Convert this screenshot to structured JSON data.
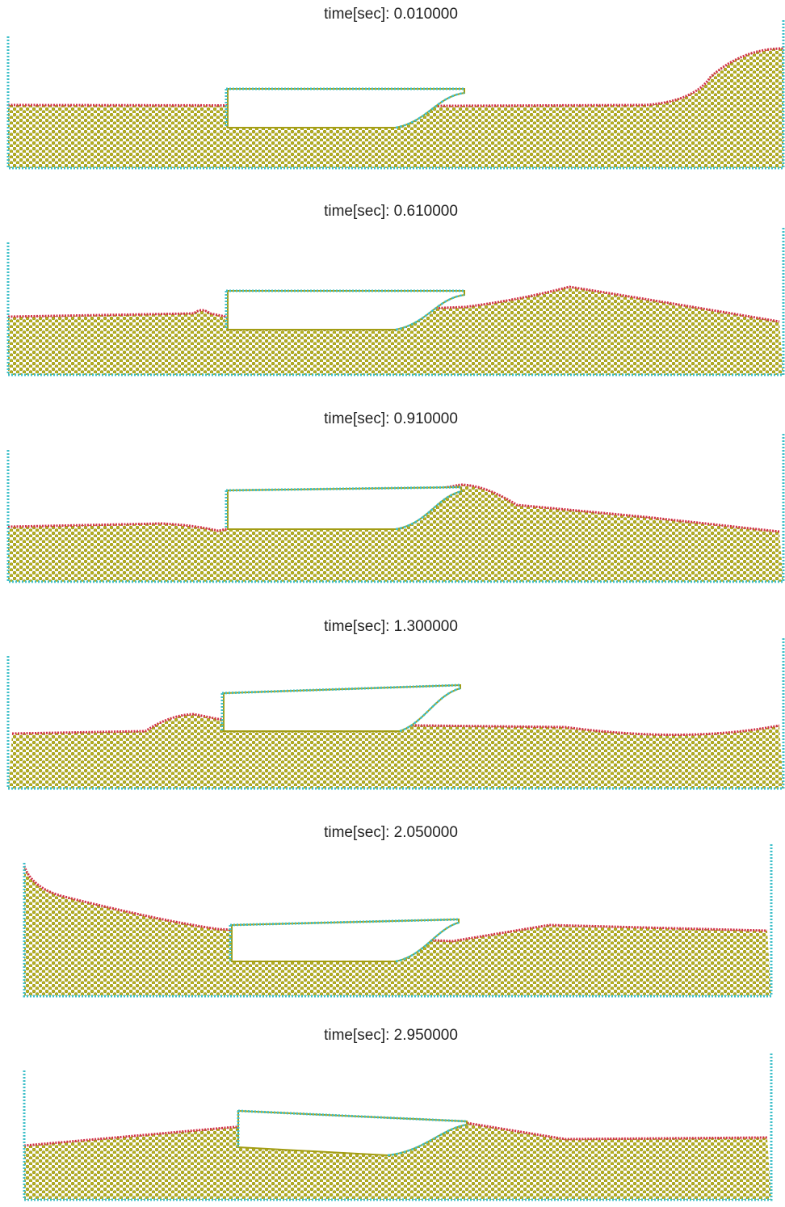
{
  "panels": [
    {
      "title": "time[sec]: 0.010000"
    },
    {
      "title": "time[sec]: 0.610000"
    },
    {
      "title": "time[sec]: 0.910000"
    },
    {
      "title": "time[sec]: 1.300000"
    },
    {
      "title": "time[sec]: 2.050000"
    },
    {
      "title": "time[sec]: 2.950000"
    }
  ]
}
